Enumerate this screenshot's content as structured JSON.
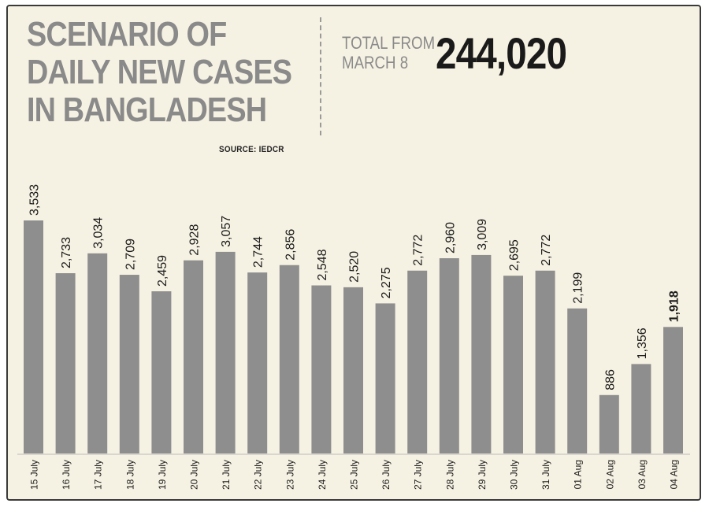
{
  "header": {
    "title_lines": [
      "SCENARIO OF",
      "DAILY NEW CASES",
      "IN BANGLADESH"
    ],
    "source": "SOURCE: IEDCR",
    "total_label_lines": [
      "TOTAL FROM",
      "MARCH 8"
    ],
    "total_value": "244,020"
  },
  "colors": {
    "background": "#f6f2e3",
    "bar": "#8e8e8e",
    "title": "#8a8a8a",
    "text": "#1a1a1a"
  },
  "chart_data": {
    "type": "bar",
    "title": "SCENARIO OF DAILY NEW CASES IN BANGLADESH",
    "categories": [
      "15 July",
      "16 July",
      "17 July",
      "18 July",
      "19 July",
      "20 July",
      "21 July",
      "22 July",
      "23 July",
      "24 July",
      "25 July",
      "26 July",
      "27 July",
      "28 July",
      "29 July",
      "30 July",
      "31 July",
      "01 Aug",
      "02 Aug",
      "03 Aug",
      "04 Aug"
    ],
    "values": [
      3533,
      2733,
      3034,
      2709,
      2459,
      2928,
      3057,
      2744,
      2856,
      2548,
      2520,
      2275,
      2772,
      2960,
      3009,
      2695,
      2772,
      2199,
      886,
      1356,
      1918
    ],
    "value_labels": [
      "3,533",
      "2,733",
      "3,034",
      "2,709",
      "2,459",
      "2,928",
      "3,057",
      "2,744",
      "2,856",
      "2,548",
      "2,520",
      "2,275",
      "2,772",
      "2,960",
      "3,009",
      "2,695",
      "2,772",
      "2,199",
      "886",
      "1,356",
      "1,918"
    ],
    "highlight_index": 20,
    "ylim": [
      0,
      3533
    ],
    "grid": false,
    "legend": "none"
  }
}
